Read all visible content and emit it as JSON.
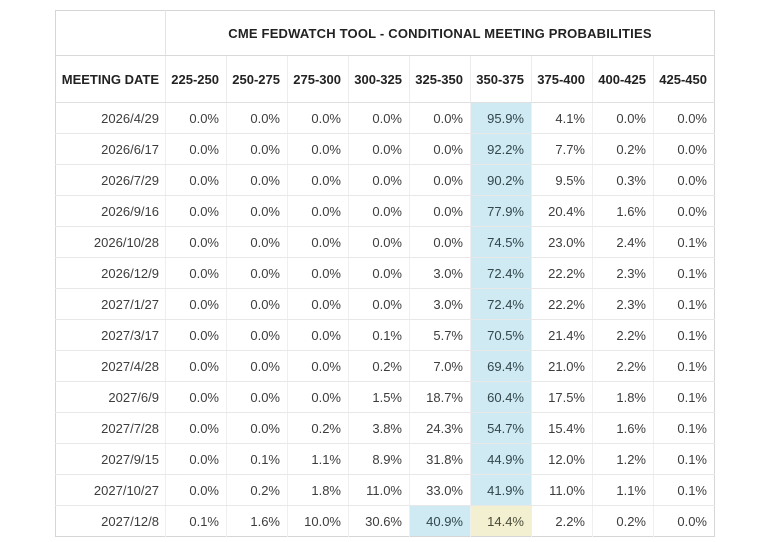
{
  "table": {
    "title": "CME FEDWATCH TOOL - CONDITIONAL MEETING PROBABILITIES",
    "date_column_header": "MEETING DATE",
    "rate_columns": [
      "225-250",
      "250-275",
      "275-300",
      "300-325",
      "325-350",
      "350-375",
      "375-400",
      "400-425",
      "425-450"
    ],
    "rows": [
      {
        "date": "2026/4/29",
        "values": [
          "0.0%",
          "0.0%",
          "0.0%",
          "0.0%",
          "0.0%",
          "95.9%",
          "4.1%",
          "0.0%",
          "0.0%"
        ],
        "blue": 5,
        "yellow": null
      },
      {
        "date": "2026/6/17",
        "values": [
          "0.0%",
          "0.0%",
          "0.0%",
          "0.0%",
          "0.0%",
          "92.2%",
          "7.7%",
          "0.2%",
          "0.0%"
        ],
        "blue": 5,
        "yellow": null
      },
      {
        "date": "2026/7/29",
        "values": [
          "0.0%",
          "0.0%",
          "0.0%",
          "0.0%",
          "0.0%",
          "90.2%",
          "9.5%",
          "0.3%",
          "0.0%"
        ],
        "blue": 5,
        "yellow": null
      },
      {
        "date": "2026/9/16",
        "values": [
          "0.0%",
          "0.0%",
          "0.0%",
          "0.0%",
          "0.0%",
          "77.9%",
          "20.4%",
          "1.6%",
          "0.0%"
        ],
        "blue": 5,
        "yellow": null
      },
      {
        "date": "2026/10/28",
        "values": [
          "0.0%",
          "0.0%",
          "0.0%",
          "0.0%",
          "0.0%",
          "74.5%",
          "23.0%",
          "2.4%",
          "0.1%"
        ],
        "blue": 5,
        "yellow": null
      },
      {
        "date": "2026/12/9",
        "values": [
          "0.0%",
          "0.0%",
          "0.0%",
          "0.0%",
          "3.0%",
          "72.4%",
          "22.2%",
          "2.3%",
          "0.1%"
        ],
        "blue": 5,
        "yellow": null
      },
      {
        "date": "2027/1/27",
        "values": [
          "0.0%",
          "0.0%",
          "0.0%",
          "0.0%",
          "3.0%",
          "72.4%",
          "22.2%",
          "2.3%",
          "0.1%"
        ],
        "blue": 5,
        "yellow": null
      },
      {
        "date": "2027/3/17",
        "values": [
          "0.0%",
          "0.0%",
          "0.0%",
          "0.1%",
          "5.7%",
          "70.5%",
          "21.4%",
          "2.2%",
          "0.1%"
        ],
        "blue": 5,
        "yellow": null
      },
      {
        "date": "2027/4/28",
        "values": [
          "0.0%",
          "0.0%",
          "0.0%",
          "0.2%",
          "7.0%",
          "69.4%",
          "21.0%",
          "2.2%",
          "0.1%"
        ],
        "blue": 5,
        "yellow": null
      },
      {
        "date": "2027/6/9",
        "values": [
          "0.0%",
          "0.0%",
          "0.0%",
          "1.5%",
          "18.7%",
          "60.4%",
          "17.5%",
          "1.8%",
          "0.1%"
        ],
        "blue": 5,
        "yellow": null
      },
      {
        "date": "2027/7/28",
        "values": [
          "0.0%",
          "0.0%",
          "0.2%",
          "3.8%",
          "24.3%",
          "54.7%",
          "15.4%",
          "1.6%",
          "0.1%"
        ],
        "blue": 5,
        "yellow": null
      },
      {
        "date": "2027/9/15",
        "values": [
          "0.0%",
          "0.1%",
          "1.1%",
          "8.9%",
          "31.8%",
          "44.9%",
          "12.0%",
          "1.2%",
          "0.1%"
        ],
        "blue": 5,
        "yellow": null
      },
      {
        "date": "2027/10/27",
        "values": [
          "0.0%",
          "0.2%",
          "1.8%",
          "11.0%",
          "33.0%",
          "41.9%",
          "11.0%",
          "1.1%",
          "0.1%"
        ],
        "blue": 5,
        "yellow": null
      },
      {
        "date": "2027/12/8",
        "values": [
          "0.1%",
          "1.6%",
          "10.0%",
          "30.6%",
          "40.9%",
          "14.4%",
          "2.2%",
          "0.2%",
          "0.0%"
        ],
        "blue": 4,
        "yellow": 5
      }
    ],
    "colors": {
      "highlight_blue": "#cfeaf3",
      "highlight_yellow": "#f3f0d2"
    }
  }
}
